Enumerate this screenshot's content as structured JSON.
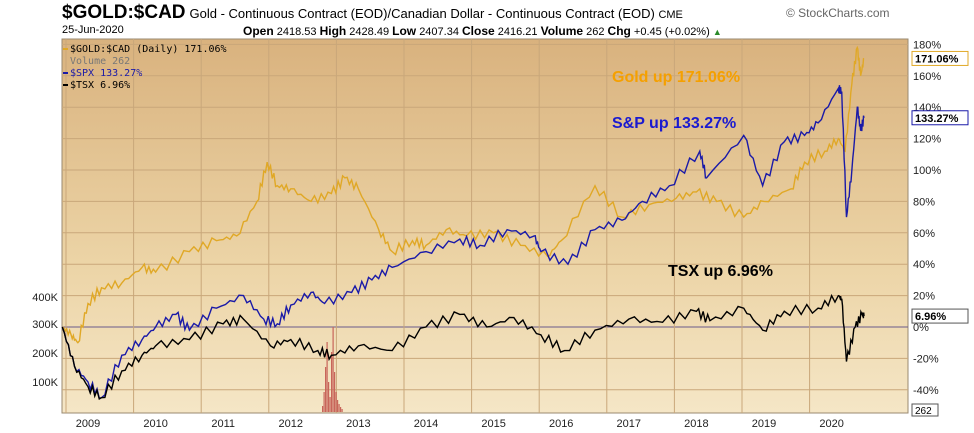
{
  "header": {
    "symbol": "$GOLD:$CAD",
    "description": "Gold - Continuous Contract (EOD)/Canadian Dollar - Continuous Contract (EOD)",
    "exchange": "CME",
    "brand": "© StockCharts.com",
    "date": "25-Jun-2020",
    "open_label": "Open",
    "open": "2418.53",
    "high_label": "High",
    "high": "2428.49",
    "low_label": "Low",
    "low": "2407.34",
    "close_label": "Close",
    "close": "2416.21",
    "volume_label": "Volume",
    "volume": "262",
    "chg_label": "Chg",
    "chg": "+0.45 (+0.02%)"
  },
  "legend": {
    "gold": "$GOLD:$CAD (Daily) 171.06%",
    "volume": "Volume 262",
    "spx": "$SPX 133.27%",
    "tsx": "$TSX 6.96%"
  },
  "annotations": {
    "gold": "Gold up 171.06%",
    "spx": "S&P up 133.27%",
    "tsx": "TSX up 6.96%"
  },
  "colors": {
    "gold": "#e0a826",
    "spx": "#1a1aa8",
    "tsx": "#000000",
    "volume": "#c8655a",
    "annot_gold": "#f5a000",
    "annot_spx": "#1a1ad0"
  },
  "chart_data": {
    "type": "line",
    "x_ticks": [
      "2009",
      "2010",
      "2011",
      "2012",
      "2013",
      "2014",
      "2015",
      "2016",
      "2017",
      "2018",
      "2019",
      "2020"
    ],
    "y_ticks": [
      "180%",
      "160%",
      "140%",
      "120%",
      "100%",
      "80%",
      "60%",
      "40%",
      "20%",
      "0%",
      "-20%",
      "-40%"
    ],
    "vol_ticks": [
      "400K",
      "300K",
      "200K",
      "100K"
    ],
    "end_labels": {
      "gold": "171.06%",
      "spx": "133.27%",
      "tsx": "6.96%",
      "volume": "262"
    },
    "ylim": [
      -50,
      185
    ],
    "xlim": [
      2008.62,
      2020.7
    ],
    "series": [
      {
        "name": "$GOLD:$CAD",
        "key": "gold",
        "points": [
          [
            2008.62,
            0
          ],
          [
            2008.75,
            -5
          ],
          [
            2008.85,
            -10
          ],
          [
            2009.0,
            15
          ],
          [
            2009.2,
            25
          ],
          [
            2009.5,
            28
          ],
          [
            2009.8,
            38
          ],
          [
            2010.0,
            35
          ],
          [
            2010.5,
            48
          ],
          [
            2010.9,
            55
          ],
          [
            2011.2,
            58
          ],
          [
            2011.5,
            80
          ],
          [
            2011.65,
            105
          ],
          [
            2011.8,
            90
          ],
          [
            2012.0,
            88
          ],
          [
            2012.3,
            80
          ],
          [
            2012.6,
            85
          ],
          [
            2012.8,
            95
          ],
          [
            2013.0,
            88
          ],
          [
            2013.3,
            62
          ],
          [
            2013.5,
            48
          ],
          [
            2013.8,
            55
          ],
          [
            2014.0,
            52
          ],
          [
            2014.3,
            62
          ],
          [
            2014.6,
            58
          ],
          [
            2015.0,
            60
          ],
          [
            2015.4,
            52
          ],
          [
            2015.8,
            45
          ],
          [
            2016.0,
            55
          ],
          [
            2016.5,
            90
          ],
          [
            2016.9,
            70
          ],
          [
            2017.3,
            78
          ],
          [
            2017.7,
            82
          ],
          [
            2018.0,
            86
          ],
          [
            2018.3,
            80
          ],
          [
            2018.7,
            70
          ],
          [
            2019.0,
            80
          ],
          [
            2019.4,
            88
          ],
          [
            2019.6,
            105
          ],
          [
            2019.9,
            112
          ],
          [
            2020.1,
            120
          ],
          [
            2020.2,
            112
          ],
          [
            2020.3,
            155
          ],
          [
            2020.38,
            178
          ],
          [
            2020.43,
            160
          ],
          [
            2020.48,
            171.06
          ]
        ]
      },
      {
        "name": "$SPX",
        "key": "spx",
        "points": [
          [
            2008.62,
            0
          ],
          [
            2008.8,
            -25
          ],
          [
            2009.0,
            -35
          ],
          [
            2009.2,
            -45
          ],
          [
            2009.5,
            -18
          ],
          [
            2009.8,
            -8
          ],
          [
            2010.0,
            0
          ],
          [
            2010.3,
            8
          ],
          [
            2010.5,
            -2
          ],
          [
            2010.9,
            12
          ],
          [
            2011.3,
            20
          ],
          [
            2011.6,
            5
          ],
          [
            2011.8,
            2
          ],
          [
            2012.0,
            14
          ],
          [
            2012.3,
            22
          ],
          [
            2012.5,
            15
          ],
          [
            2012.9,
            22
          ],
          [
            2013.2,
            30
          ],
          [
            2013.5,
            38
          ],
          [
            2014.0,
            48
          ],
          [
            2014.5,
            56
          ],
          [
            2014.8,
            52
          ],
          [
            2015.2,
            62
          ],
          [
            2015.6,
            58
          ],
          [
            2015.7,
            48
          ],
          [
            2016.1,
            40
          ],
          [
            2016.5,
            62
          ],
          [
            2016.9,
            68
          ],
          [
            2017.2,
            80
          ],
          [
            2017.6,
            90
          ],
          [
            2018.05,
            112
          ],
          [
            2018.15,
            95
          ],
          [
            2018.7,
            122
          ],
          [
            2018.98,
            90
          ],
          [
            2019.3,
            118
          ],
          [
            2019.6,
            122
          ],
          [
            2019.8,
            130
          ],
          [
            2020.1,
            152
          ],
          [
            2020.15,
            150
          ],
          [
            2020.22,
            70
          ],
          [
            2020.3,
            100
          ],
          [
            2020.38,
            140
          ],
          [
            2020.43,
            125
          ],
          [
            2020.48,
            133.27
          ]
        ]
      },
      {
        "name": "$TSX",
        "key": "tsx",
        "points": [
          [
            2008.62,
            0
          ],
          [
            2008.8,
            -25
          ],
          [
            2009.0,
            -38
          ],
          [
            2009.2,
            -45
          ],
          [
            2009.5,
            -28
          ],
          [
            2009.8,
            -18
          ],
          [
            2010.0,
            -12
          ],
          [
            2010.5,
            -8
          ],
          [
            2011.0,
            2
          ],
          [
            2011.3,
            5
          ],
          [
            2011.7,
            -12
          ],
          [
            2012.0,
            -8
          ],
          [
            2012.4,
            -15
          ],
          [
            2012.6,
            -18
          ],
          [
            2013.0,
            -12
          ],
          [
            2013.5,
            -15
          ],
          [
            2014.0,
            0
          ],
          [
            2014.5,
            8
          ],
          [
            2014.9,
            0
          ],
          [
            2015.3,
            6
          ],
          [
            2015.7,
            -5
          ],
          [
            2016.05,
            -15
          ],
          [
            2016.5,
            -2
          ],
          [
            2017.0,
            5
          ],
          [
            2017.5,
            3
          ],
          [
            2018.0,
            10
          ],
          [
            2018.2,
            4
          ],
          [
            2018.7,
            12
          ],
          [
            2018.98,
            -2
          ],
          [
            2019.3,
            10
          ],
          [
            2019.8,
            12
          ],
          [
            2020.1,
            20
          ],
          [
            2020.15,
            18
          ],
          [
            2020.22,
            -22
          ],
          [
            2020.35,
            0
          ],
          [
            2020.45,
            8
          ],
          [
            2020.48,
            6.96
          ]
        ]
      }
    ]
  }
}
